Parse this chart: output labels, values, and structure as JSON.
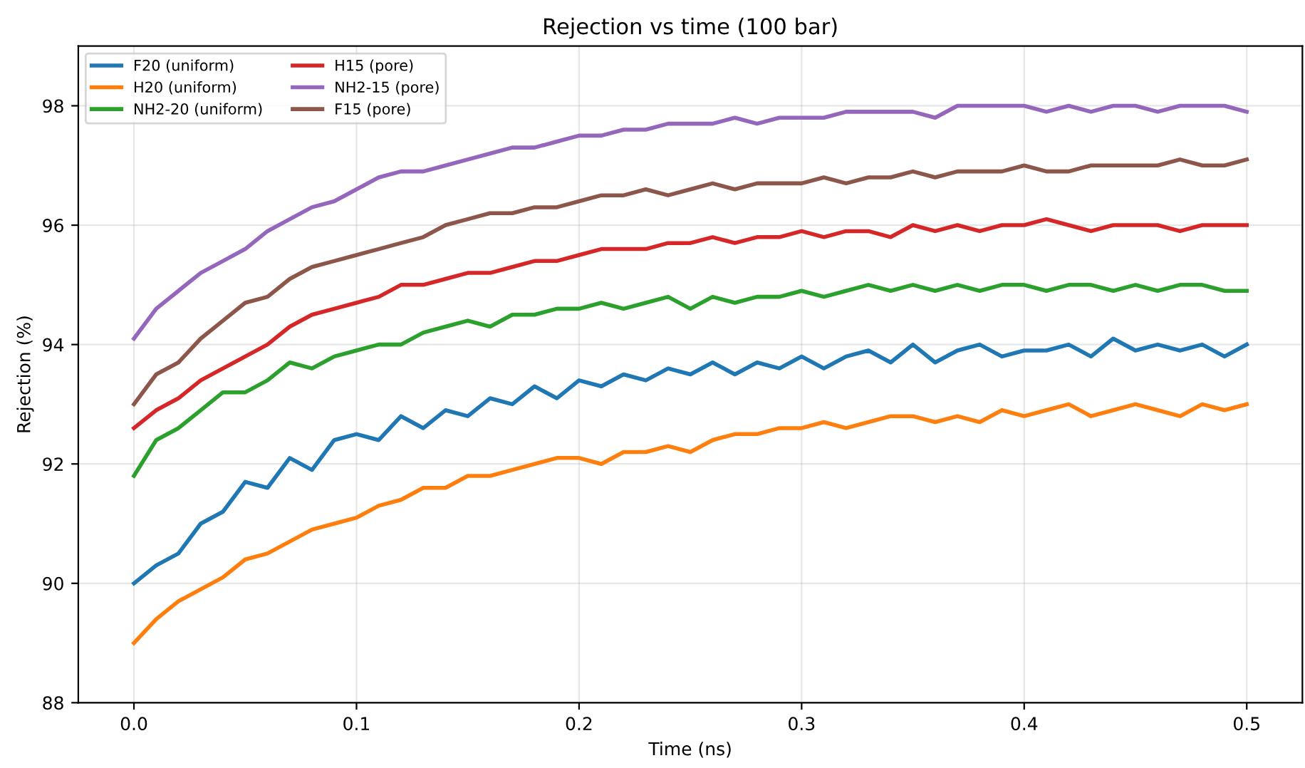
{
  "chart_data": {
    "type": "line",
    "title": "Rejection vs time (100 bar)",
    "xlabel": "Time (ns)",
    "ylabel": "Rejection (%)",
    "x": [
      0.0,
      0.01,
      0.02,
      0.03,
      0.04,
      0.05,
      0.06,
      0.07,
      0.08,
      0.09,
      0.1,
      0.11,
      0.12,
      0.13,
      0.14,
      0.15,
      0.16,
      0.17,
      0.18,
      0.19,
      0.2,
      0.21,
      0.22,
      0.23,
      0.24,
      0.25,
      0.26,
      0.27,
      0.28,
      0.29,
      0.3,
      0.31,
      0.32,
      0.33,
      0.34,
      0.35,
      0.36,
      0.37,
      0.38,
      0.39,
      0.4,
      0.41,
      0.42,
      0.43,
      0.44,
      0.45,
      0.46,
      0.47,
      0.48,
      0.49,
      0.5
    ],
    "series": [
      {
        "name": "F20 (uniform)",
        "color": "#1f77b4",
        "values": [
          90.0,
          90.3,
          90.5,
          91.0,
          91.2,
          91.7,
          91.6,
          92.1,
          91.9,
          92.4,
          92.5,
          92.4,
          92.8,
          92.6,
          92.9,
          92.8,
          93.1,
          93.0,
          93.3,
          93.1,
          93.4,
          93.3,
          93.5,
          93.4,
          93.6,
          93.5,
          93.7,
          93.5,
          93.7,
          93.6,
          93.8,
          93.6,
          93.8,
          93.9,
          93.7,
          94.0,
          93.7,
          93.9,
          94.0,
          93.8,
          93.9,
          93.9,
          94.0,
          93.8,
          94.1,
          93.9,
          94.0,
          93.9,
          94.0,
          93.8,
          94.0
        ]
      },
      {
        "name": "H20 (uniform)",
        "color": "#ff7f0e",
        "values": [
          89.0,
          89.4,
          89.7,
          89.9,
          90.1,
          90.4,
          90.5,
          90.7,
          90.9,
          91.0,
          91.1,
          91.3,
          91.4,
          91.6,
          91.6,
          91.8,
          91.8,
          91.9,
          92.0,
          92.1,
          92.1,
          92.0,
          92.2,
          92.2,
          92.3,
          92.2,
          92.4,
          92.5,
          92.5,
          92.6,
          92.6,
          92.7,
          92.6,
          92.7,
          92.8,
          92.8,
          92.7,
          92.8,
          92.7,
          92.9,
          92.8,
          92.9,
          93.0,
          92.8,
          92.9,
          93.0,
          92.9,
          92.8,
          93.0,
          92.9,
          93.0
        ]
      },
      {
        "name": "NH2-20 (uniform)",
        "color": "#2ca02c",
        "values": [
          91.8,
          92.4,
          92.6,
          92.9,
          93.2,
          93.2,
          93.4,
          93.7,
          93.6,
          93.8,
          93.9,
          94.0,
          94.0,
          94.2,
          94.3,
          94.4,
          94.3,
          94.5,
          94.5,
          94.6,
          94.6,
          94.7,
          94.6,
          94.7,
          94.8,
          94.6,
          94.8,
          94.7,
          94.8,
          94.8,
          94.9,
          94.8,
          94.9,
          95.0,
          94.9,
          95.0,
          94.9,
          95.0,
          94.9,
          95.0,
          95.0,
          94.9,
          95.0,
          95.0,
          94.9,
          95.0,
          94.9,
          95.0,
          95.0,
          94.9,
          94.9
        ]
      },
      {
        "name": "H15 (pore)",
        "color": "#d62728",
        "values": [
          92.6,
          92.9,
          93.1,
          93.4,
          93.6,
          93.8,
          94.0,
          94.3,
          94.5,
          94.6,
          94.7,
          94.8,
          95.0,
          95.0,
          95.1,
          95.2,
          95.2,
          95.3,
          95.4,
          95.4,
          95.5,
          95.6,
          95.6,
          95.6,
          95.7,
          95.7,
          95.8,
          95.7,
          95.8,
          95.8,
          95.9,
          95.8,
          95.9,
          95.9,
          95.8,
          96.0,
          95.9,
          96.0,
          95.9,
          96.0,
          96.0,
          96.1,
          96.0,
          95.9,
          96.0,
          96.0,
          96.0,
          95.9,
          96.0,
          96.0,
          96.0
        ]
      },
      {
        "name": "NH2-15 (pore)",
        "color": "#9467bd",
        "values": [
          94.1,
          94.6,
          94.9,
          95.2,
          95.4,
          95.6,
          95.9,
          96.1,
          96.3,
          96.4,
          96.6,
          96.8,
          96.9,
          96.9,
          97.0,
          97.1,
          97.2,
          97.3,
          97.3,
          97.4,
          97.5,
          97.5,
          97.6,
          97.6,
          97.7,
          97.7,
          97.7,
          97.8,
          97.7,
          97.8,
          97.8,
          97.8,
          97.9,
          97.9,
          97.9,
          97.9,
          97.8,
          98.0,
          98.0,
          98.0,
          98.0,
          97.9,
          98.0,
          97.9,
          98.0,
          98.0,
          97.9,
          98.0,
          98.0,
          98.0,
          97.9
        ]
      },
      {
        "name": "F15 (pore)",
        "color": "#8c564b",
        "values": [
          93.0,
          93.5,
          93.7,
          94.1,
          94.4,
          94.7,
          94.8,
          95.1,
          95.3,
          95.4,
          95.5,
          95.6,
          95.7,
          95.8,
          96.0,
          96.1,
          96.2,
          96.2,
          96.3,
          96.3,
          96.4,
          96.5,
          96.5,
          96.6,
          96.5,
          96.6,
          96.7,
          96.6,
          96.7,
          96.7,
          96.7,
          96.8,
          96.7,
          96.8,
          96.8,
          96.9,
          96.8,
          96.9,
          96.9,
          96.9,
          97.0,
          96.9,
          96.9,
          97.0,
          97.0,
          97.0,
          97.0,
          97.1,
          97.0,
          97.0,
          97.1
        ]
      }
    ],
    "xlim": [
      -0.025,
      0.525
    ],
    "xticks": [
      {
        "value": 0.0,
        "label": "0.0"
      },
      0.1,
      0.2,
      0.3,
      0.4,
      0.5
    ],
    "ylim": [
      88,
      99
    ],
    "yticks": [
      88,
      90,
      92,
      94,
      96,
      98
    ],
    "grid": true,
    "legend": "top left",
    "marker": "none",
    "line_style": "solid"
  }
}
